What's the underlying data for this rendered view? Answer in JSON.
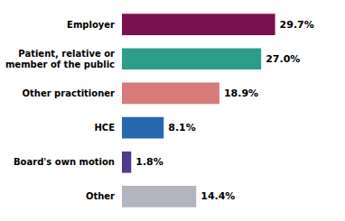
{
  "chart_data": {
    "type": "bar",
    "orientation": "horizontal",
    "categories": [
      "Other",
      "Board's own motion",
      "HCE",
      "Other practitioner",
      "Patient, relative or\nmember of the public",
      "Employer"
    ],
    "values": [
      14.4,
      1.8,
      8.1,
      18.9,
      27.0,
      29.7
    ],
    "value_labels": [
      "14.4%",
      "1.8%",
      "8.1%",
      "18.9%",
      "27.0%",
      "29.7%"
    ],
    "colors": [
      "#b2b5bd",
      "#4f3a8c",
      "#2768b0",
      "#d97b7b",
      "#2d9d8a",
      "#7b1050"
    ],
    "xlim": [
      0,
      38
    ],
    "data_labels": true,
    "tick_labels": "y",
    "grid": false
  }
}
